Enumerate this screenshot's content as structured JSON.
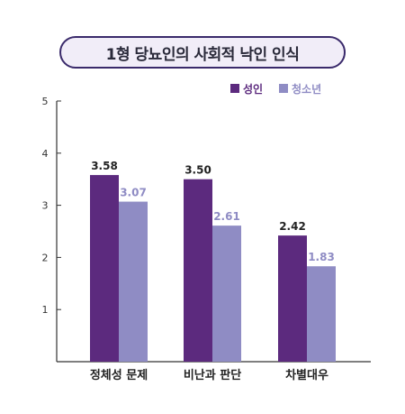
{
  "chart_data": {
    "type": "bar",
    "title": "1형 당뇨인의 사회적 낙인 인식",
    "categories": [
      "정체성 문제",
      "비난과 판단",
      "차별대우"
    ],
    "series": [
      {
        "name": "성인",
        "values": [
          3.58,
          3.5,
          2.42
        ],
        "labels": [
          "3.58",
          "3.50",
          "2.42"
        ],
        "color": "#5c2a7e",
        "label_color": "#222222"
      },
      {
        "name": "청소년",
        "values": [
          3.07,
          2.61,
          1.83
        ],
        "labels": [
          "3.07",
          "2.61",
          "1.83"
        ],
        "color": "#8f8cc4",
        "label_color": "#8f8cc4"
      }
    ],
    "ylim": [
      0,
      5
    ],
    "yticks": [
      "1",
      "2",
      "3",
      "4",
      "5"
    ],
    "legend": "top-right",
    "grid": false
  }
}
